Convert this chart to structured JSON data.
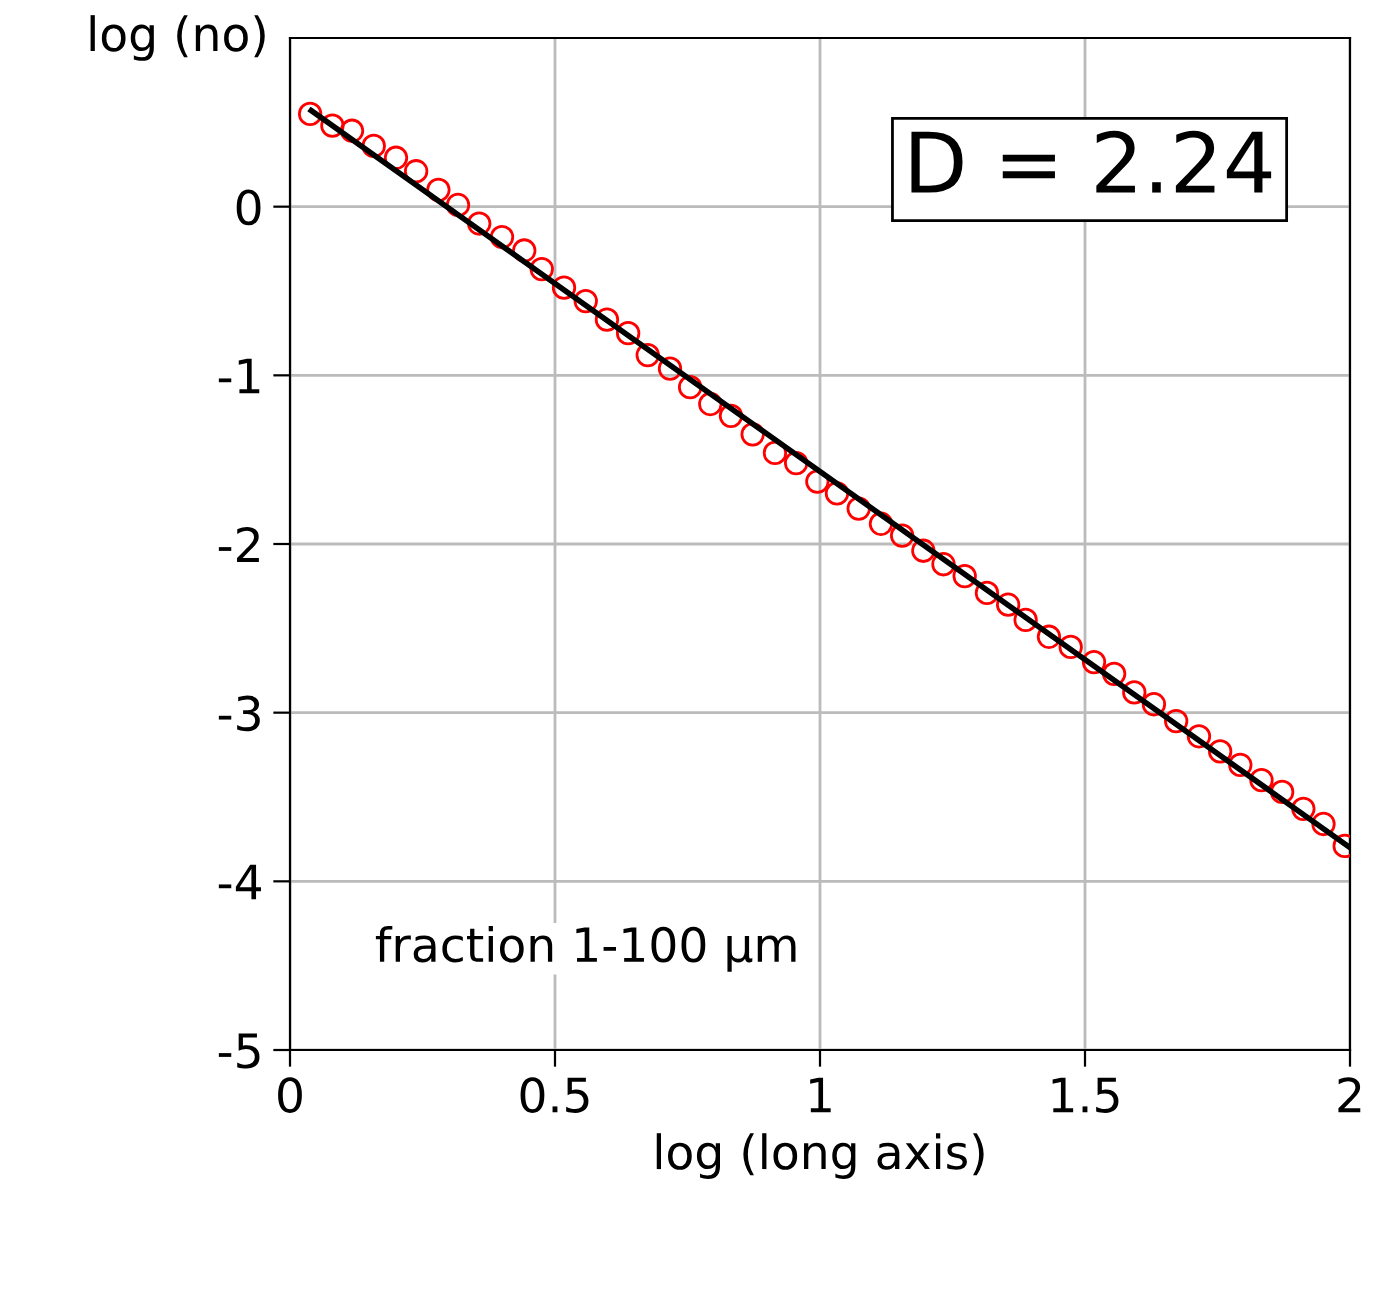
{
  "chart_data": {
    "type": "scatter",
    "xlabel": "log (long axis)",
    "ylabel": "log (no)",
    "xlim": [
      0,
      2
    ],
    "ylim": [
      -5,
      1
    ],
    "xticks": [
      0,
      0.5,
      1,
      1.5,
      2
    ],
    "yticks": [
      -5,
      -4,
      -3,
      -2,
      -1,
      0
    ],
    "grid": true,
    "annotations": [
      "D = 2.24",
      "fraction 1-100 μm"
    ],
    "series": [
      {
        "color": "#ff0000",
        "marker": "circle",
        "x": [
          0.038,
          0.08,
          0.117,
          0.158,
          0.2,
          0.238,
          0.28,
          0.317,
          0.357,
          0.4,
          0.442,
          0.475,
          0.517,
          0.558,
          0.598,
          0.638,
          0.675,
          0.717,
          0.755,
          0.793,
          0.832,
          0.873,
          0.915,
          0.955,
          0.995,
          1.032,
          1.073,
          1.115,
          1.155,
          1.195,
          1.233,
          1.273,
          1.315,
          1.355,
          1.388,
          1.432,
          1.473,
          1.517,
          1.555,
          1.593,
          1.63,
          1.672,
          1.715,
          1.755,
          1.793,
          1.833,
          1.872,
          1.912,
          1.95,
          1.99
        ],
        "values": [
          0.55,
          0.48,
          0.45,
          0.36,
          0.29,
          0.21,
          0.1,
          0.01,
          -0.1,
          -0.18,
          -0.26,
          -0.37,
          -0.48,
          -0.56,
          -0.67,
          -0.75,
          -0.88,
          -0.96,
          -1.07,
          -1.17,
          -1.24,
          -1.35,
          -1.46,
          -1.52,
          -1.63,
          -1.7,
          -1.79,
          -1.88,
          -1.95,
          -2.04,
          -2.12,
          -2.19,
          -2.29,
          -2.36,
          -2.45,
          -2.55,
          -2.61,
          -2.7,
          -2.77,
          -2.88,
          -2.95,
          -3.05,
          -3.14,
          -3.23,
          -3.31,
          -3.4,
          -3.47,
          -3.57,
          -3.66,
          -3.79
        ]
      },
      {
        "type": "line",
        "color": "#000000",
        "marker": "none",
        "line_style": "solid",
        "x": [
          0.04,
          2
        ],
        "values": [
          0.57,
          -3.8
        ]
      }
    ]
  }
}
